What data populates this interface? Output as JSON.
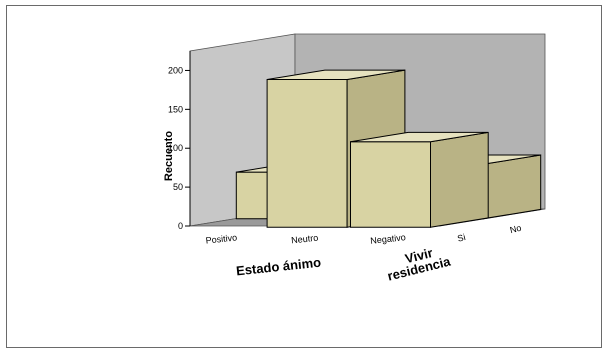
{
  "chart_data": {
    "type": "bar",
    "subtype": "3d-bar",
    "ylabel": "Recuento",
    "xlabel": "Estado ánimo",
    "zlabel": [
      "Vivir",
      "residencia"
    ],
    "x_categories": [
      "Positivo",
      "Neutro",
      "Negativo"
    ],
    "z_categories": [
      "Si",
      "No"
    ],
    "y_ticks": [
      0,
      50,
      100,
      150,
      200
    ],
    "ylim": [
      0,
      225
    ],
    "series": [
      {
        "values": [
          0,
          190,
          110
        ]
      },
      {
        "values": [
          60,
          45,
          70
        ]
      }
    ],
    "colors": {
      "bar_front": "#d8d3a3",
      "bar_top": "#e6e2bf",
      "bar_side": "#b9b385",
      "wall": "#b3b3b3",
      "wall_side": "#c7c7c7",
      "floor": "#9a9a9a",
      "edge": "#000000"
    }
  }
}
